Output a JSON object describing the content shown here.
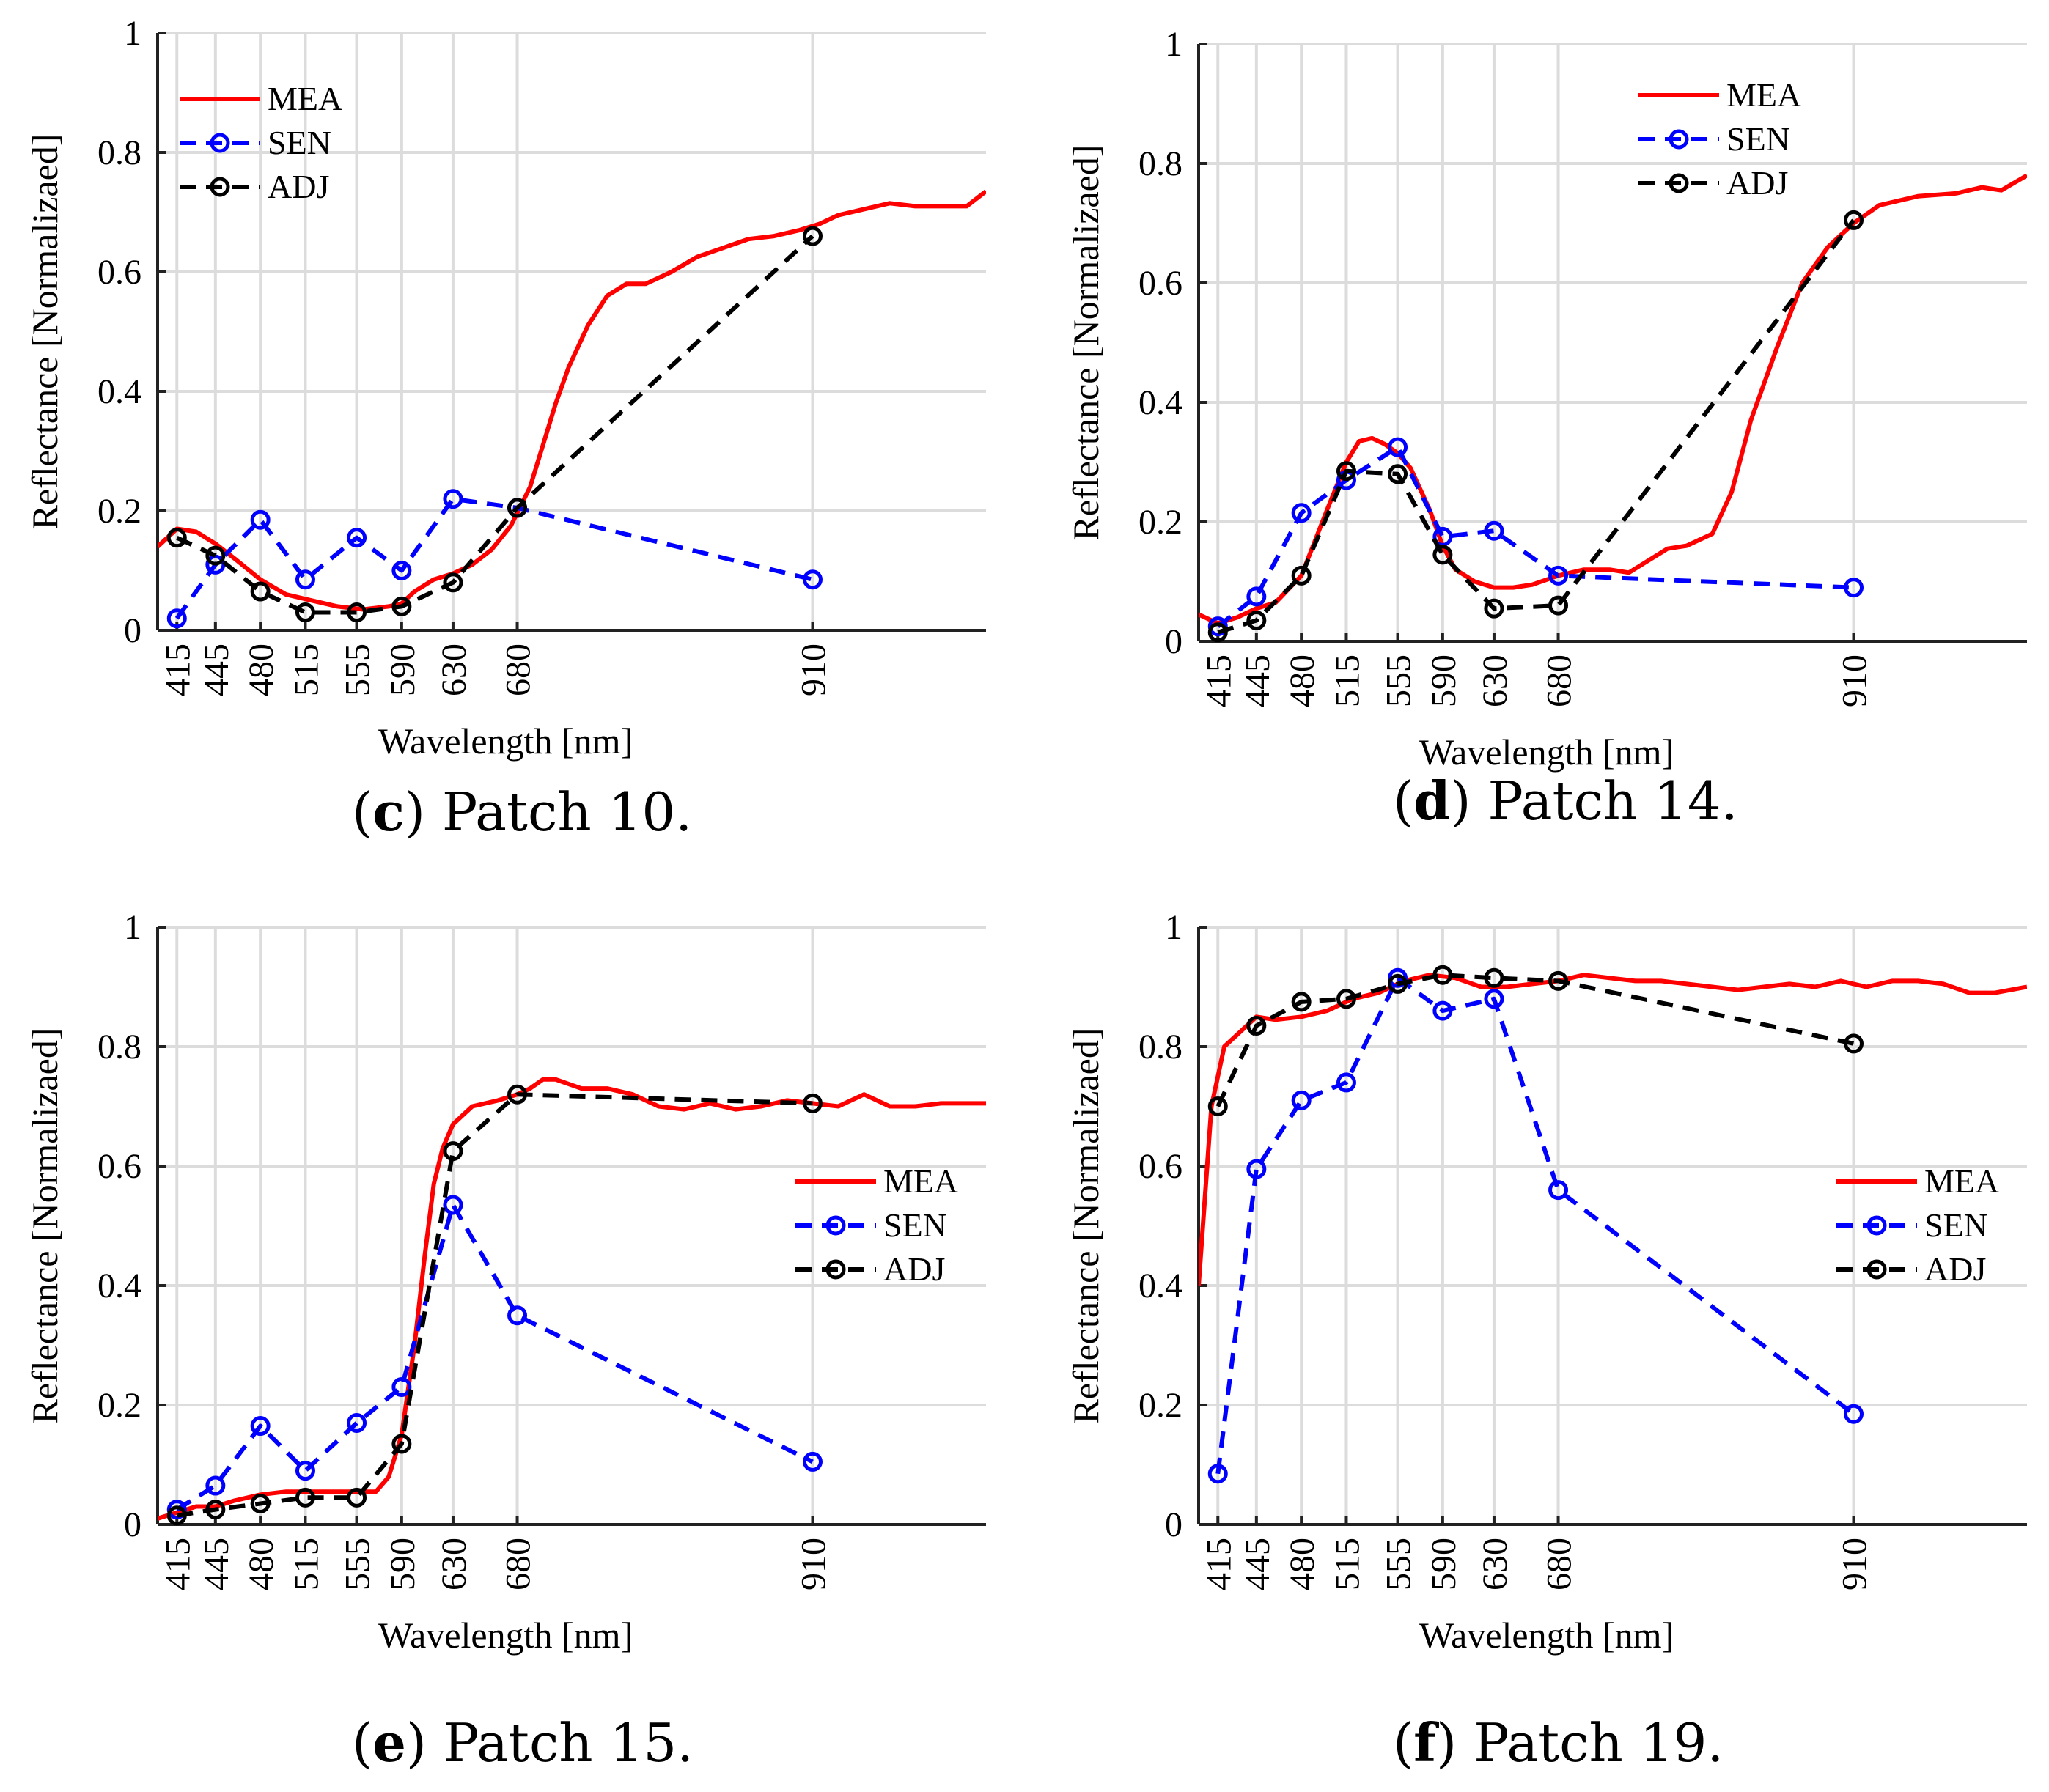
{
  "chart_data": [
    {
      "type": "line",
      "caption_letter": "c",
      "caption_text": "Patch 10.",
      "xlabel": "Wavelength [nm]",
      "ylabel": "Reflectance [Normalizaed]",
      "xlim": [
        400,
        1045
      ],
      "ylim": [
        0,
        1
      ],
      "yticks": [
        0,
        0.2,
        0.4,
        0.6,
        0.8,
        1
      ],
      "ytick_labels": [
        "0",
        "0.2",
        "0.4",
        "0.6",
        "0.8",
        "1"
      ],
      "xticks": [
        415,
        445,
        480,
        515,
        555,
        590,
        630,
        680,
        910
      ],
      "xtick_labels": [
        "415",
        "445",
        "480",
        "515",
        "555",
        "590",
        "630",
        "680",
        "910"
      ],
      "grid": true,
      "legend_position": "top-left",
      "series": [
        {
          "name": "MEA",
          "color": "#ff0000",
          "style": "solid",
          "markers": false,
          "x": [
            400,
            415,
            430,
            445,
            460,
            480,
            500,
            520,
            540,
            560,
            580,
            590,
            600,
            615,
            630,
            645,
            660,
            675,
            690,
            700,
            710,
            720,
            735,
            750,
            765,
            780,
            800,
            820,
            840,
            860,
            880,
            900,
            915,
            930,
            950,
            970,
            990,
            1010,
            1030,
            1045
          ],
          "y": [
            0.14,
            0.17,
            0.165,
            0.145,
            0.12,
            0.085,
            0.06,
            0.05,
            0.04,
            0.035,
            0.04,
            0.045,
            0.065,
            0.085,
            0.095,
            0.11,
            0.135,
            0.175,
            0.24,
            0.31,
            0.38,
            0.44,
            0.51,
            0.56,
            0.58,
            0.58,
            0.6,
            0.625,
            0.64,
            0.655,
            0.66,
            0.67,
            0.68,
            0.695,
            0.705,
            0.715,
            0.71,
            0.71,
            0.71,
            0.735
          ]
        },
        {
          "name": "SEN",
          "color": "#0000ff",
          "style": "dashed",
          "markers": true,
          "x": [
            415,
            445,
            480,
            515,
            555,
            590,
            630,
            680,
            910
          ],
          "y": [
            0.02,
            0.11,
            0.185,
            0.085,
            0.155,
            0.1,
            0.22,
            0.205,
            0.085
          ]
        },
        {
          "name": "ADJ",
          "color": "#000000",
          "style": "dashed",
          "markers": true,
          "x": [
            415,
            445,
            480,
            515,
            555,
            590,
            630,
            680,
            910
          ],
          "y": [
            0.155,
            0.125,
            0.065,
            0.03,
            0.03,
            0.04,
            0.08,
            0.205,
            0.66
          ]
        }
      ]
    },
    {
      "type": "line",
      "caption_letter": "d",
      "caption_text": "Patch 14.",
      "xlabel": "Wavelength [nm]",
      "ylabel": "Reflectance [Normalizaed]",
      "xlim": [
        400,
        1045
      ],
      "ylim": [
        0,
        1
      ],
      "yticks": [
        0,
        0.2,
        0.4,
        0.6,
        0.8,
        1
      ],
      "ytick_labels": [
        "0",
        "0.2",
        "0.4",
        "0.6",
        "0.8",
        "1"
      ],
      "xticks": [
        415,
        445,
        480,
        515,
        555,
        590,
        630,
        680,
        910
      ],
      "xtick_labels": [
        "415",
        "445",
        "480",
        "515",
        "555",
        "590",
        "630",
        "680",
        "910"
      ],
      "grid": true,
      "legend_position": "top-right",
      "series": [
        {
          "name": "MEA",
          "color": "#ff0000",
          "style": "solid",
          "markers": false,
          "x": [
            400,
            415,
            430,
            445,
            460,
            480,
            500,
            515,
            525,
            535,
            545,
            555,
            565,
            580,
            590,
            600,
            615,
            630,
            645,
            660,
            680,
            700,
            720,
            735,
            750,
            765,
            780,
            800,
            815,
            830,
            850,
            870,
            890,
            910,
            930,
            960,
            990,
            1010,
            1025,
            1045
          ],
          "y": [
            0.045,
            0.03,
            0.04,
            0.055,
            0.065,
            0.11,
            0.22,
            0.3,
            0.335,
            0.34,
            0.33,
            0.315,
            0.29,
            0.22,
            0.16,
            0.12,
            0.1,
            0.09,
            0.09,
            0.095,
            0.11,
            0.12,
            0.12,
            0.115,
            0.135,
            0.155,
            0.16,
            0.18,
            0.25,
            0.37,
            0.49,
            0.6,
            0.66,
            0.7,
            0.73,
            0.745,
            0.75,
            0.76,
            0.755,
            0.78
          ]
        },
        {
          "name": "SEN",
          "color": "#0000ff",
          "style": "dashed",
          "markers": true,
          "x": [
            415,
            445,
            480,
            515,
            555,
            590,
            630,
            680,
            910
          ],
          "y": [
            0.025,
            0.075,
            0.215,
            0.27,
            0.325,
            0.175,
            0.185,
            0.11,
            0.09
          ]
        },
        {
          "name": "ADJ",
          "color": "#000000",
          "style": "dashed",
          "markers": true,
          "x": [
            415,
            445,
            480,
            515,
            555,
            590,
            630,
            680,
            910
          ],
          "y": [
            0.015,
            0.035,
            0.11,
            0.285,
            0.28,
            0.145,
            0.055,
            0.06,
            0.705
          ]
        }
      ]
    },
    {
      "type": "line",
      "caption_letter": "e",
      "caption_text": "Patch 15.",
      "xlabel": "Wavelength [nm]",
      "ylabel": "Reflectance [Normalizaed]",
      "xlim": [
        400,
        1045
      ],
      "ylim": [
        0,
        1
      ],
      "yticks": [
        0,
        0.2,
        0.4,
        0.6,
        0.8,
        1
      ],
      "ytick_labels": [
        "0",
        "0.2",
        "0.4",
        "0.6",
        "0.8",
        "1"
      ],
      "xticks": [
        415,
        445,
        480,
        515,
        555,
        590,
        630,
        680,
        910
      ],
      "xtick_labels": [
        "415",
        "445",
        "480",
        "515",
        "555",
        "590",
        "630",
        "680",
        "910"
      ],
      "grid": true,
      "legend_position": "middle-right",
      "series": [
        {
          "name": "MEA",
          "color": "#ff0000",
          "style": "solid",
          "markers": false,
          "x": [
            400,
            415,
            430,
            445,
            460,
            480,
            500,
            520,
            540,
            555,
            570,
            580,
            590,
            600,
            608,
            615,
            622,
            630,
            645,
            665,
            680,
            690,
            700,
            710,
            730,
            750,
            770,
            790,
            810,
            830,
            850,
            870,
            890,
            910,
            930,
            950,
            970,
            990,
            1010,
            1045
          ],
          "y": [
            0.01,
            0.02,
            0.03,
            0.03,
            0.04,
            0.05,
            0.055,
            0.055,
            0.055,
            0.055,
            0.055,
            0.08,
            0.15,
            0.3,
            0.45,
            0.57,
            0.63,
            0.67,
            0.7,
            0.71,
            0.72,
            0.73,
            0.745,
            0.745,
            0.73,
            0.73,
            0.72,
            0.7,
            0.695,
            0.705,
            0.695,
            0.7,
            0.71,
            0.705,
            0.7,
            0.72,
            0.7,
            0.7,
            0.705,
            0.705
          ]
        },
        {
          "name": "SEN",
          "color": "#0000ff",
          "style": "dashed",
          "markers": true,
          "x": [
            415,
            445,
            480,
            515,
            555,
            590,
            630,
            680,
            910
          ],
          "y": [
            0.025,
            0.065,
            0.165,
            0.09,
            0.17,
            0.23,
            0.535,
            0.35,
            0.105
          ]
        },
        {
          "name": "ADJ",
          "color": "#000000",
          "style": "dashed",
          "markers": true,
          "x": [
            415,
            445,
            480,
            515,
            555,
            590,
            630,
            680,
            910
          ],
          "y": [
            0.015,
            0.025,
            0.035,
            0.045,
            0.045,
            0.135,
            0.625,
            0.72,
            0.705
          ]
        }
      ]
    },
    {
      "type": "line",
      "caption_letter": "f",
      "caption_text": "Patch 19.",
      "xlabel": "Wavelength [nm]",
      "ylabel": "Reflectance [Normalizaed]",
      "xlim": [
        400,
        1045
      ],
      "ylim": [
        0,
        1
      ],
      "yticks": [
        0,
        0.2,
        0.4,
        0.6,
        0.8,
        1
      ],
      "ytick_labels": [
        "0",
        "0.2",
        "0.4",
        "0.6",
        "0.8",
        "1"
      ],
      "xticks": [
        415,
        445,
        480,
        515,
        555,
        590,
        630,
        680,
        910
      ],
      "xtick_labels": [
        "415",
        "445",
        "480",
        "515",
        "555",
        "590",
        "630",
        "680",
        "910"
      ],
      "grid": true,
      "legend_position": "middle-right",
      "series": [
        {
          "name": "MEA",
          "color": "#ff0000",
          "style": "solid",
          "markers": false,
          "x": [
            400,
            410,
            420,
            430,
            445,
            460,
            480,
            500,
            520,
            540,
            560,
            580,
            600,
            620,
            640,
            660,
            680,
            700,
            720,
            740,
            760,
            780,
            800,
            820,
            840,
            860,
            880,
            900,
            920,
            940,
            960,
            980,
            1000,
            1020,
            1045
          ],
          "y": [
            0.4,
            0.7,
            0.8,
            0.82,
            0.85,
            0.845,
            0.85,
            0.86,
            0.88,
            0.89,
            0.91,
            0.92,
            0.915,
            0.9,
            0.9,
            0.905,
            0.91,
            0.92,
            0.915,
            0.91,
            0.91,
            0.905,
            0.9,
            0.895,
            0.9,
            0.905,
            0.9,
            0.91,
            0.9,
            0.91,
            0.91,
            0.905,
            0.89,
            0.89,
            0.9
          ]
        },
        {
          "name": "SEN",
          "color": "#0000ff",
          "style": "dashed",
          "markers": true,
          "x": [
            415,
            445,
            480,
            515,
            555,
            590,
            630,
            680,
            910
          ],
          "y": [
            0.085,
            0.595,
            0.71,
            0.74,
            0.915,
            0.86,
            0.88,
            0.56,
            0.185
          ]
        },
        {
          "name": "ADJ",
          "color": "#000000",
          "style": "dashed",
          "markers": true,
          "x": [
            415,
            445,
            480,
            515,
            555,
            590,
            630,
            680,
            910
          ],
          "y": [
            0.7,
            0.835,
            0.875,
            0.88,
            0.905,
            0.92,
            0.915,
            0.91,
            0.805
          ]
        }
      ]
    }
  ]
}
